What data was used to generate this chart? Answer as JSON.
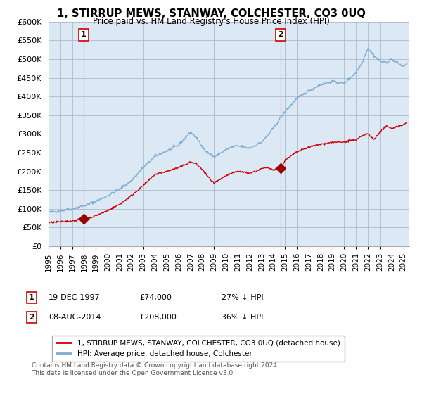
{
  "title": "1, STIRRUP MEWS, STANWAY, COLCHESTER, CO3 0UQ",
  "subtitle": "Price paid vs. HM Land Registry's House Price Index (HPI)",
  "ylim": [
    0,
    600000
  ],
  "yticks": [
    0,
    50000,
    100000,
    150000,
    200000,
    250000,
    300000,
    350000,
    400000,
    450000,
    500000,
    550000,
    600000
  ],
  "xlim_start": 1995.0,
  "xlim_end": 2025.5,
  "sale1_date": 1997.97,
  "sale1_price": 74000,
  "sale1_label": "1",
  "sale2_date": 2014.62,
  "sale2_price": 208000,
  "sale2_label": "2",
  "legend_line1": "1, STIRRUP MEWS, STANWAY, COLCHESTER, CO3 0UQ (detached house)",
  "legend_line2": "HPI: Average price, detached house, Colchester",
  "footnote": "Contains HM Land Registry data © Crown copyright and database right 2024.\nThis data is licensed under the Open Government Licence v3.0.",
  "line_color_red": "#cc0000",
  "line_color_blue": "#7aadd4",
  "marker_color_red": "#990000",
  "bg_color": "#ffffff",
  "plot_bg_color": "#dce9f5",
  "grid_color": "#aabbcc",
  "sale_box_color": "#cc0000",
  "hpi_anchors_x": [
    1995.0,
    1996.0,
    1997.0,
    1998.0,
    1999.0,
    2000.0,
    2001.0,
    2002.0,
    2003.0,
    2004.0,
    2005.0,
    2006.0,
    2007.0,
    2007.5,
    2008.0,
    2008.5,
    2009.0,
    2009.5,
    2010.0,
    2010.5,
    2011.0,
    2011.5,
    2012.0,
    2012.5,
    2013.0,
    2013.5,
    2014.0,
    2014.5,
    2015.0,
    2016.0,
    2017.0,
    2018.0,
    2019.0,
    2020.0,
    2020.5,
    2021.0,
    2021.5,
    2022.0,
    2022.5,
    2023.0,
    2023.5,
    2024.0,
    2024.5,
    2025.0,
    2025.3
  ],
  "hpi_anchors_y": [
    90000,
    95000,
    100000,
    108000,
    120000,
    135000,
    152000,
    175000,
    210000,
    240000,
    255000,
    270000,
    305000,
    290000,
    265000,
    250000,
    238000,
    248000,
    258000,
    265000,
    268000,
    265000,
    262000,
    270000,
    278000,
    295000,
    315000,
    338000,
    360000,
    395000,
    415000,
    432000,
    440000,
    435000,
    450000,
    465000,
    490000,
    530000,
    510000,
    495000,
    490000,
    500000,
    490000,
    480000,
    490000
  ],
  "price_anchors_x": [
    1995.0,
    1996.0,
    1997.0,
    1997.97,
    1998.5,
    1999.0,
    2000.0,
    2001.0,
    2002.0,
    2003.0,
    2004.0,
    2005.0,
    2006.0,
    2007.0,
    2007.5,
    2008.0,
    2008.5,
    2009.0,
    2009.5,
    2010.0,
    2010.5,
    2011.0,
    2011.5,
    2012.0,
    2012.5,
    2013.0,
    2013.5,
    2014.0,
    2014.62,
    2015.0,
    2016.0,
    2017.0,
    2018.0,
    2019.0,
    2020.0,
    2020.5,
    2021.0,
    2021.5,
    2022.0,
    2022.5,
    2023.0,
    2023.5,
    2024.0,
    2025.0,
    2025.3
  ],
  "price_anchors_y": [
    63000,
    65000,
    68000,
    74000,
    76000,
    82000,
    95000,
    112000,
    135000,
    162000,
    192000,
    200000,
    210000,
    225000,
    220000,
    205000,
    185000,
    168000,
    178000,
    188000,
    195000,
    200000,
    198000,
    195000,
    200000,
    207000,
    210000,
    205000,
    208000,
    230000,
    252000,
    265000,
    272000,
    278000,
    278000,
    283000,
    283000,
    295000,
    300000,
    285000,
    305000,
    320000,
    315000,
    325000,
    330000
  ]
}
